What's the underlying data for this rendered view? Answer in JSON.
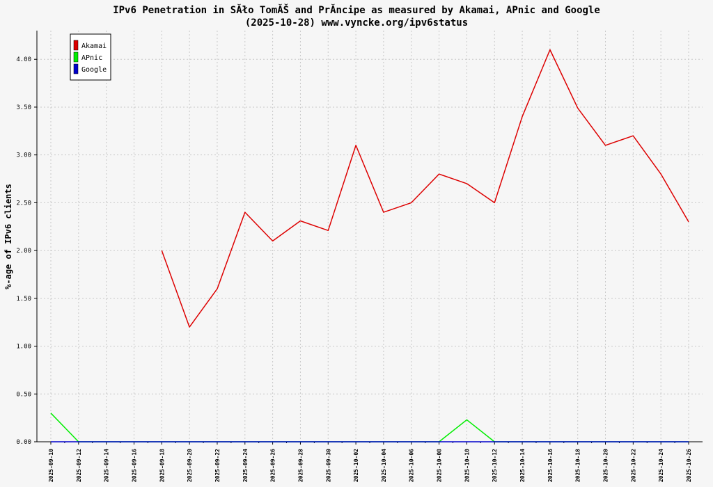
{
  "chart_data": {
    "type": "line",
    "title": "IPv6 Penetration in SĂło TomĂŠ and PrĂ­ncipe as measured by Akamai, APnic and Google",
    "subtitle": "(2025-10-28) www.vyncke.org/ipv6status",
    "ylabel": "%-age of IPv6 clients",
    "xlabel": "",
    "ylim": [
      0,
      4.3
    ],
    "yticks": [
      "0.00",
      "0.50",
      "1.00",
      "1.50",
      "2.00",
      "2.50",
      "3.00",
      "3.50",
      "4.00"
    ],
    "grid": true,
    "legend_position": "top-left",
    "x": [
      "2025-09-10",
      "2025-09-11",
      "2025-09-12",
      "2025-09-13",
      "2025-09-14",
      "2025-09-15",
      "2025-09-16",
      "2025-09-17",
      "2025-09-18",
      "2025-09-19",
      "2025-09-20",
      "2025-09-21",
      "2025-09-22",
      "2025-09-23",
      "2025-09-24",
      "2025-09-25",
      "2025-09-26",
      "2025-09-27",
      "2025-09-28",
      "2025-09-29",
      "2025-09-30",
      "2025-10-01",
      "2025-10-02",
      "2025-10-03",
      "2025-10-04",
      "2025-10-05",
      "2025-10-06",
      "2025-10-07",
      "2025-10-08",
      "2025-10-09",
      "2025-10-10",
      "2025-10-11",
      "2025-10-12",
      "2025-10-13",
      "2025-10-14",
      "2025-10-15",
      "2025-10-16",
      "2025-10-17",
      "2025-10-18",
      "2025-10-19",
      "2025-10-20",
      "2025-10-21",
      "2025-10-22",
      "2025-10-23",
      "2025-10-24",
      "2025-10-25",
      "2025-10-26"
    ],
    "xtick_labels": [
      "2025-09-10",
      "2025-09-12",
      "2025-09-14",
      "2025-09-16",
      "2025-09-18",
      "2025-09-20",
      "2025-09-22",
      "2025-09-24",
      "2025-09-26",
      "2025-09-28",
      "2025-09-30",
      "2025-10-02",
      "2025-10-04",
      "2025-10-06",
      "2025-10-08",
      "2025-10-10",
      "2025-10-12",
      "2025-10-14",
      "2025-10-16",
      "2025-10-18",
      "2025-10-20",
      "2025-10-22",
      "2025-10-24",
      "2025-10-26"
    ],
    "series": [
      {
        "name": "Akamai",
        "color": "#dd0000",
        "points": [
          [
            "2025-09-18",
            2.0
          ],
          [
            "2025-09-20",
            1.2
          ],
          [
            "2025-09-22",
            1.6
          ],
          [
            "2025-09-24",
            2.4
          ],
          [
            "2025-09-26",
            2.1
          ],
          [
            "2025-09-28",
            2.31
          ],
          [
            "2025-09-30",
            2.21
          ],
          [
            "2025-10-02",
            3.1
          ],
          [
            "2025-10-04",
            2.4
          ],
          [
            "2025-10-06",
            2.5
          ],
          [
            "2025-10-08",
            2.8
          ],
          [
            "2025-10-10",
            2.7
          ],
          [
            "2025-10-12",
            2.5
          ],
          [
            "2025-10-14",
            3.4
          ],
          [
            "2025-10-16",
            4.1
          ],
          [
            "2025-10-18",
            3.49
          ],
          [
            "2025-10-20",
            3.1
          ],
          [
            "2025-10-22",
            3.2
          ],
          [
            "2025-10-24",
            2.8
          ],
          [
            "2025-10-26",
            2.3
          ]
        ]
      },
      {
        "name": "APnic",
        "color": "#00ee00",
        "points": [
          [
            "2025-09-10",
            0.3
          ],
          [
            "2025-09-12",
            0.0
          ],
          [
            "2025-10-08",
            0.0
          ],
          [
            "2025-10-10",
            0.23
          ],
          [
            "2025-10-12",
            0.0
          ],
          [
            "2025-10-26",
            0.0
          ]
        ]
      },
      {
        "name": "Google",
        "color": "#0000cc",
        "points": [
          [
            "2025-09-10",
            0.0
          ],
          [
            "2025-10-26",
            0.0
          ]
        ]
      }
    ]
  }
}
